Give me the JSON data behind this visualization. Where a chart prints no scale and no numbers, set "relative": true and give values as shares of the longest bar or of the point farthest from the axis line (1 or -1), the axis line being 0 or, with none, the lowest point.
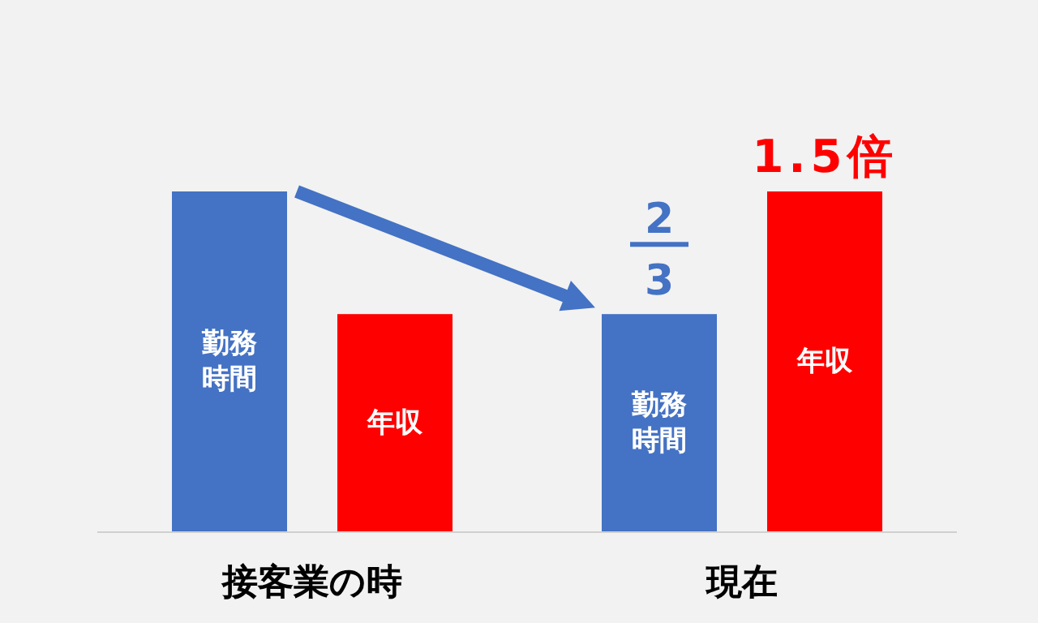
{
  "chart_data": {
    "type": "bar",
    "relative": true,
    "categories": [
      "接客業の時",
      "現在"
    ],
    "series": [
      {
        "name": "勤務時間",
        "color": "#4472c4",
        "values": [
          1,
          0.64
        ]
      },
      {
        "name": "年収",
        "color": "#ff0000",
        "values": [
          0.64,
          1
        ]
      }
    ],
    "annotations": [
      "2",
      "3",
      "1.5倍"
    ],
    "legend": false
  }
}
